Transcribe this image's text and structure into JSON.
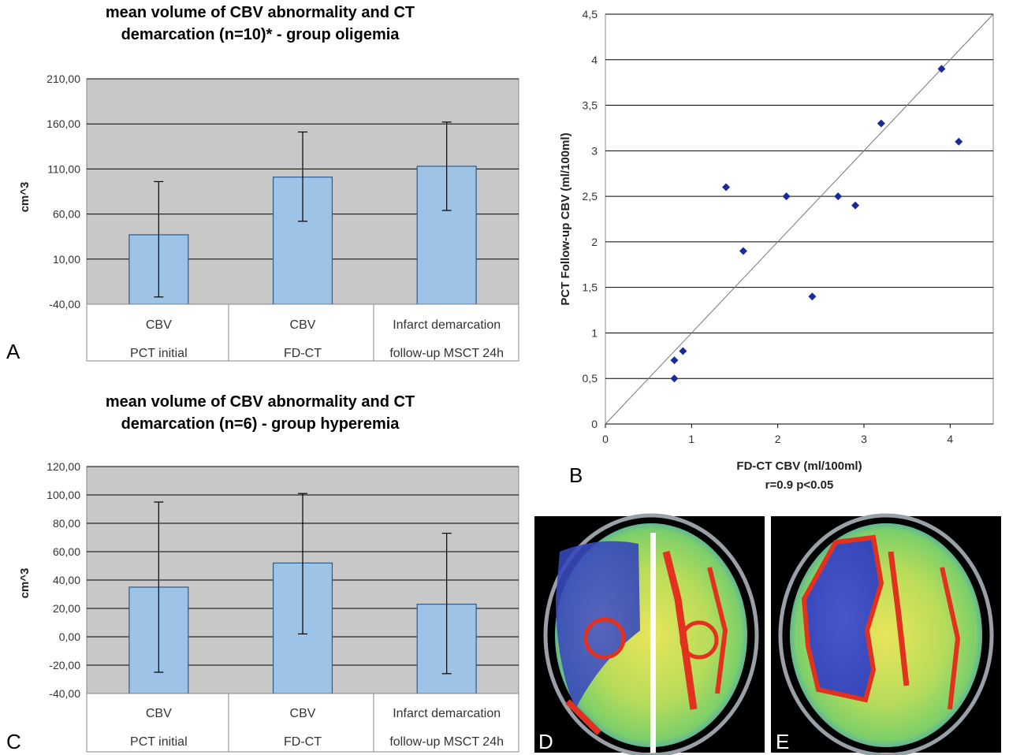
{
  "panels": {
    "a": "A",
    "b": "B",
    "c": "C",
    "d": "D",
    "e": "E"
  },
  "colors": {
    "plot_bg": "#c8c8c8",
    "bar_fill": "#9dc3e6",
    "bar_stroke": "#2f5a8a",
    "marker": "#1b2a9a"
  },
  "chart_data": [
    {
      "type": "bar",
      "title_line1": "mean volume of CBV abnormality and CT",
      "title_line2": "demarcation (n=10)* - group oligemia",
      "ylabel": "cm^3",
      "ylim": [
        -40,
        210
      ],
      "yticks": [
        "-40,00",
        "10,00",
        "60,00",
        "110,00",
        "160,00",
        "210,00"
      ],
      "categories": [
        [
          "CBV",
          "PCT initial"
        ],
        [
          "CBV",
          "FD-CT"
        ],
        [
          "Infarct demarcation",
          "follow-up MSCT 24h"
        ]
      ],
      "values": [
        37,
        101,
        113
      ],
      "error_low": [
        -32,
        52,
        64
      ],
      "error_high": [
        96,
        151,
        162
      ]
    },
    {
      "type": "scatter",
      "xlabel": "FD-CT CBV (ml/100ml)",
      "ylabel": "PCT Follow-up CBV (ml/100ml)",
      "stat_line": "r=0.9  p<0.05",
      "xlim": [
        0,
        4.5
      ],
      "ylim": [
        0,
        4.5
      ],
      "xticks": [
        "0",
        "1",
        "2",
        "3",
        "4"
      ],
      "yticks": [
        "0",
        "0,5",
        "1",
        "1,5",
        "2",
        "2,5",
        "3",
        "3,5",
        "4",
        "4,5"
      ],
      "points": [
        [
          0.8,
          0.5
        ],
        [
          0.8,
          0.7
        ],
        [
          0.9,
          0.8
        ],
        [
          1.4,
          2.6
        ],
        [
          1.6,
          1.9
        ],
        [
          2.1,
          2.5
        ],
        [
          2.4,
          1.4
        ],
        [
          2.7,
          2.5
        ],
        [
          2.9,
          2.4
        ],
        [
          3.2,
          3.3
        ],
        [
          3.9,
          3.9
        ],
        [
          4.1,
          3.1
        ]
      ],
      "identity_line": true
    },
    {
      "type": "bar",
      "title_line1": "mean volume of CBV abnormality and CT",
      "title_line2": "demarcation (n=6) - group hyperemia",
      "ylabel": "cm^3",
      "ylim": [
        -40,
        120
      ],
      "yticks": [
        "-40,00",
        "-20,00",
        "0,00",
        "20,00",
        "40,00",
        "60,00",
        "80,00",
        "100,00",
        "120,00"
      ],
      "categories": [
        [
          "CBV",
          "PCT initial"
        ],
        [
          "CBV",
          "FD-CT"
        ],
        [
          "Infarct demarcation",
          "follow-up MSCT 24h"
        ]
      ],
      "values": [
        35,
        52,
        23
      ],
      "error_low": [
        -25,
        2,
        -26
      ],
      "error_high": [
        95,
        101,
        73
      ]
    }
  ]
}
